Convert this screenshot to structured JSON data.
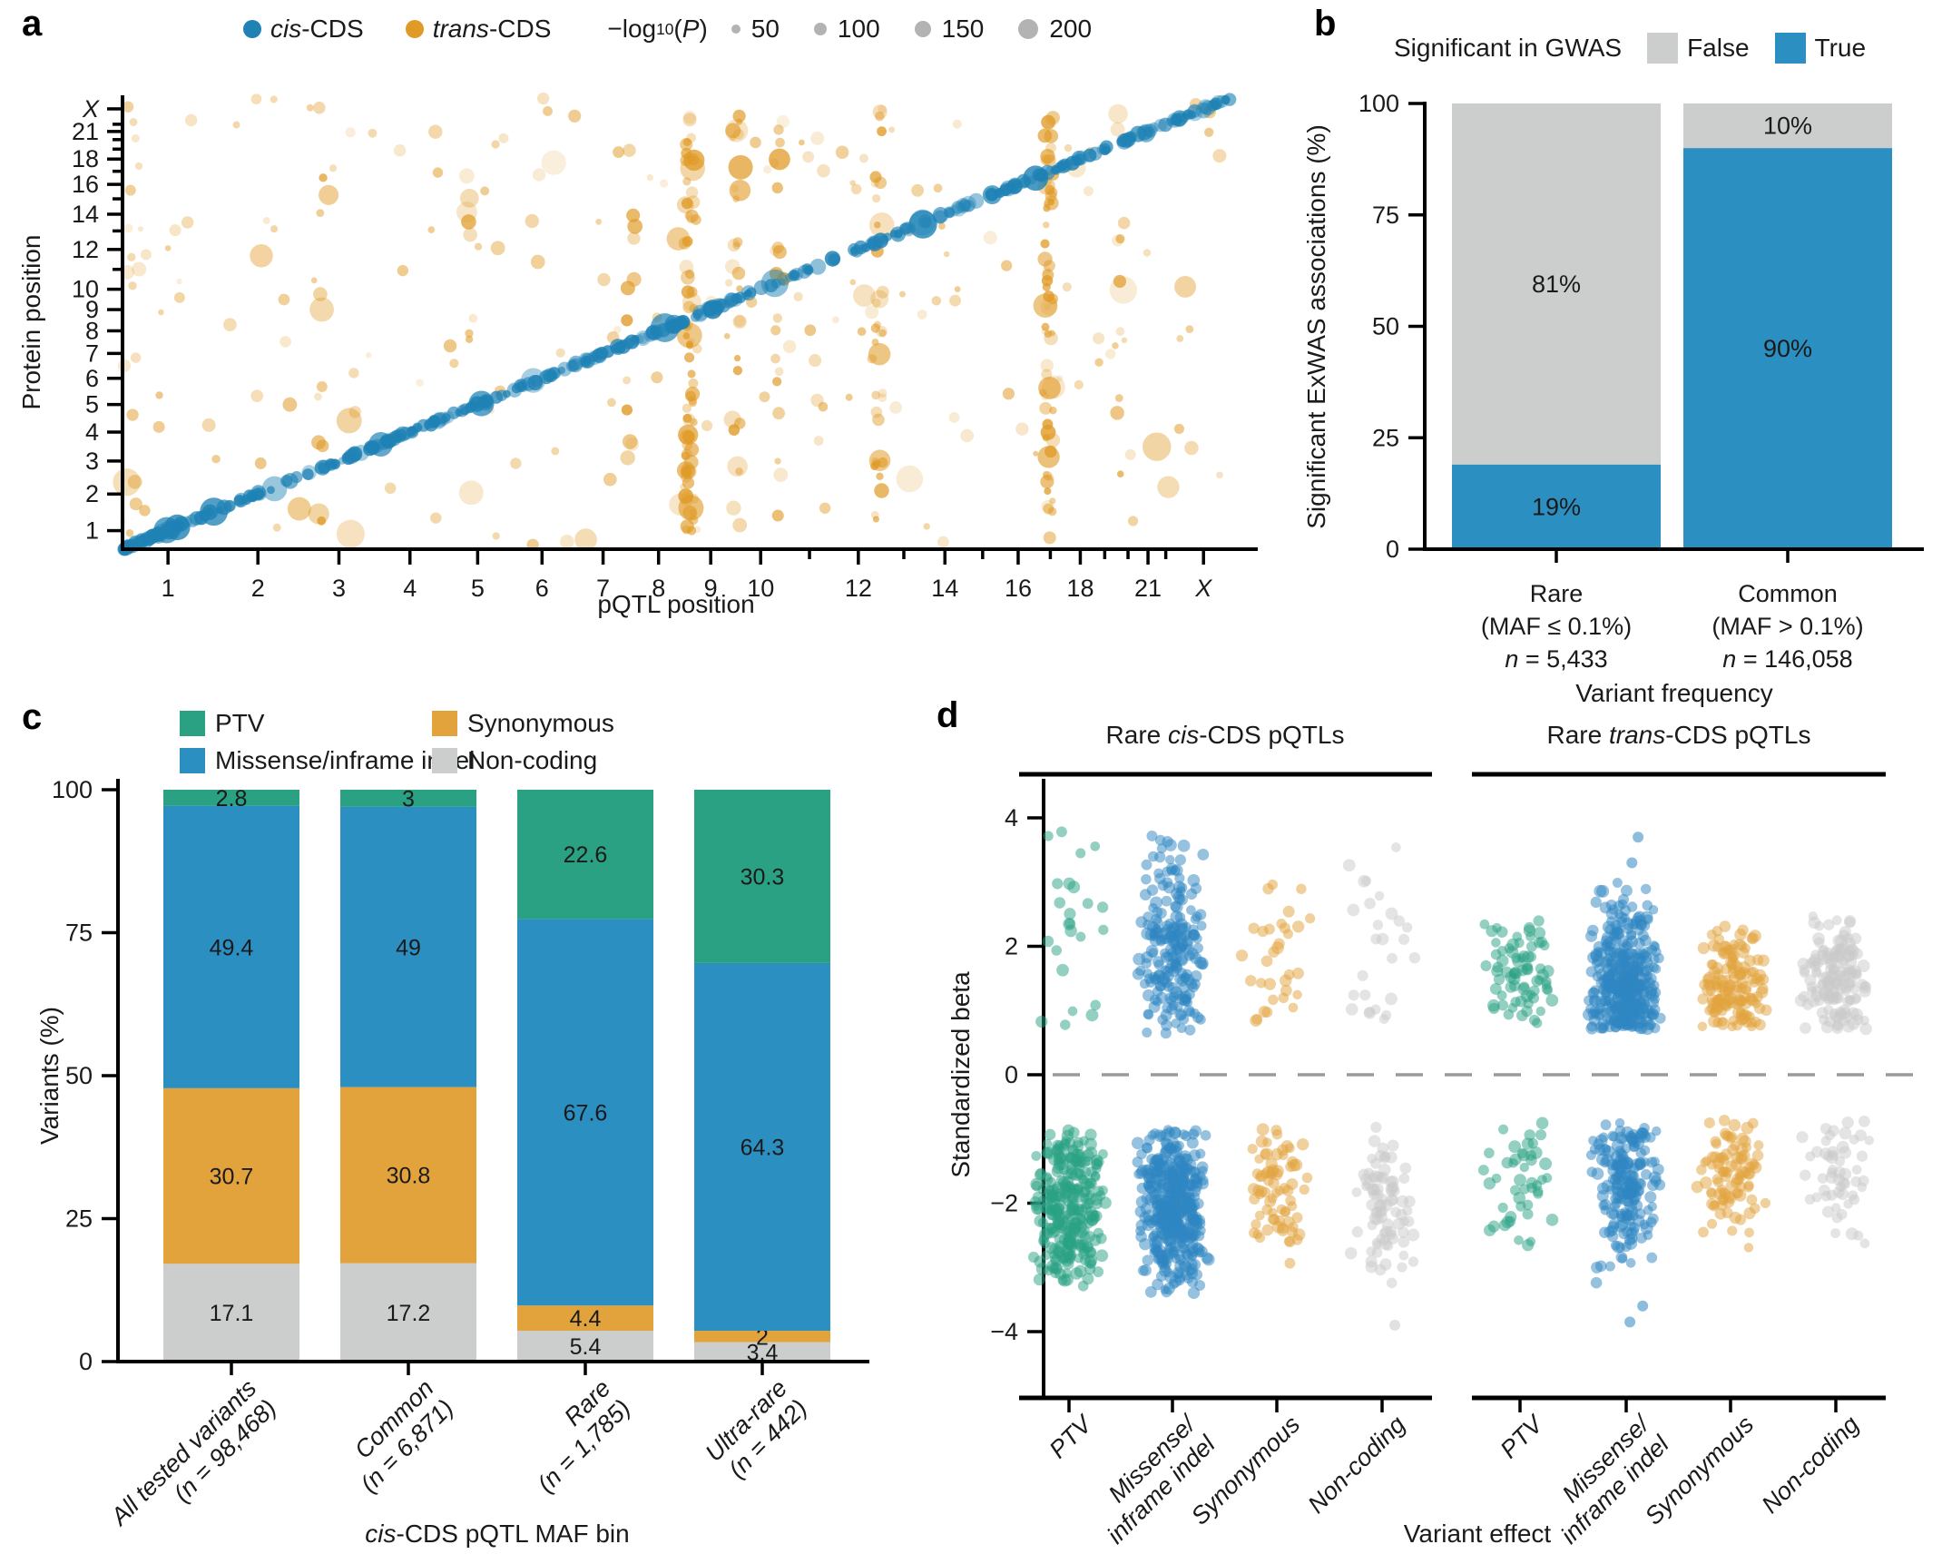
{
  "panels": {
    "a": {
      "letter": "a",
      "legend": {
        "cis_i": "cis",
        "cis_rest": "-CDS",
        "trans_i": "trans",
        "trans_rest": "-CDS",
        "size_prefix": "−log",
        "size_sub": "10",
        "size_open": "(",
        "size_p": "P",
        "size_close": ")",
        "sizes": [
          "50",
          "100",
          "150",
          "200"
        ]
      },
      "xlabel": "pQTL position",
      "ylabel": "Protein position"
    },
    "b": {
      "letter": "b",
      "legend_title": "Significant in GWAS",
      "false_label": "False",
      "true_label": "True",
      "ylabel": "Significant ExWAS associations (%)",
      "xlabel": "Variant frequency",
      "categories": [
        {
          "name": "Rare",
          "maf": "(MAF ≤ 0.1%)",
          "n_i": "n",
          "n_rest": " = 5,433"
        },
        {
          "name": "Common",
          "maf": "(MAF > 0.1%)",
          "n_i": "n",
          "n_rest": " = 146,058"
        }
      ]
    },
    "c": {
      "letter": "c",
      "legend": {
        "ptv": "PTV",
        "missense": "Missense/inframe indel",
        "synonymous": "Synonymous",
        "noncoding": "Non-coding"
      },
      "ylabel": "Variants (%)",
      "xlabel_i": "cis",
      "xlabel_rest": "-CDS pQTL MAF bin",
      "categories": [
        {
          "line1": "All tested variants",
          "n_pre": "(",
          "n_i": "n",
          "n_rest": " = 98,468)"
        },
        {
          "line1": "Common",
          "n_pre": "(",
          "n_i": "n",
          "n_rest": " = 6,871)"
        },
        {
          "line1": "Rare",
          "n_pre": "(",
          "n_i": "n",
          "n_rest": " = 1,785)"
        },
        {
          "line1": "Ultra-rare",
          "n_pre": "(",
          "n_i": "n",
          "n_rest": " = 442)"
        }
      ]
    },
    "d": {
      "letter": "d",
      "header1": {
        "pre": "Rare ",
        "i": "cis",
        "post": "-CDS pQTLs"
      },
      "header2": {
        "pre": "Rare ",
        "i": "trans",
        "post": "-CDS pQTLs"
      },
      "ylabel": "Standardized beta",
      "xlabel": "Variant effect",
      "categories": [
        {
          "l1": "PTV",
          "l2": ""
        },
        {
          "l1": "Missense/",
          "l2": "inframe indel"
        },
        {
          "l1": "Synonymous",
          "l2": ""
        },
        {
          "l1": "Non-coding",
          "l2": ""
        }
      ]
    }
  },
  "chart_data": [
    {
      "id": "a",
      "type": "scatter",
      "xlabel": "pQTL position",
      "ylabel": "Protein position",
      "axes_scale": "cumulative genome position over chromosomes 1-22 and X on both axes",
      "chrom_fractions": {
        "1": 0.041,
        "2": 0.122,
        "3": 0.195,
        "4": 0.259,
        "5": 0.32,
        "6": 0.378,
        "7": 0.433,
        "8": 0.483,
        "9": 0.53,
        "10": 0.575,
        "11": 0.619,
        "12": 0.663,
        "13": 0.704,
        "14": 0.741,
        "15": 0.775,
        "16": 0.807,
        "17": 0.836,
        "18": 0.863,
        "19": 0.885,
        "20": 0.906,
        "21": 0.924,
        "22": 0.94,
        "X": 0.974
      },
      "labeled_ticks": [
        "1",
        "2",
        "3",
        "4",
        "5",
        "6",
        "7",
        "8",
        "9",
        "10",
        "12",
        "14",
        "16",
        "18",
        "21",
        "X"
      ],
      "size_legend": {
        "title": "−log10(P)",
        "values": [
          50,
          100,
          150,
          200
        ]
      },
      "series": [
        {
          "name": "cis-CDS",
          "color": "#1f82b5",
          "pattern": "diagonal y = x band",
          "n": 430,
          "start_cluster_n": 55
        },
        {
          "name": "trans-CDS",
          "color": "#e09a26",
          "pattern": "background scatter plus vertical bands",
          "n": 190,
          "bands": [
            [
              0.179,
              10
            ],
            [
              0.31,
              7
            ],
            [
              0.458,
              12
            ],
            [
              0.511,
              72
            ],
            [
              0.553,
              26
            ],
            [
              0.592,
              14
            ],
            [
              0.681,
              32
            ],
            [
              0.835,
              60
            ],
            [
              0.9,
              10
            ]
          ],
          "left_edge_n": 14
        }
      ]
    },
    {
      "id": "b",
      "type": "bar",
      "stacked": true,
      "legend_title": "Significant in GWAS",
      "ylabel": "Significant ExWAS associations (%)",
      "xlabel": "Variant frequency",
      "ylim": [
        0,
        100
      ],
      "yticks": [
        0,
        25,
        50,
        75,
        100
      ],
      "categories": [
        "Rare (MAF ≤ 0.1%) n = 5,433",
        "Common (MAF > 0.1%) n = 146,058"
      ],
      "series": [
        {
          "name": "True",
          "color": "#2b8fc1",
          "values": [
            19,
            90
          ],
          "labels": [
            "19%",
            "90%"
          ]
        },
        {
          "name": "False",
          "color": "#cbcecd",
          "values": [
            81,
            10
          ],
          "labels": [
            "81%",
            "10%"
          ]
        }
      ]
    },
    {
      "id": "c",
      "type": "bar",
      "stacked": true,
      "ylabel": "Variants (%)",
      "xlabel": "cis-CDS pQTL MAF bin",
      "ylim": [
        0,
        100
      ],
      "yticks": [
        0,
        25,
        50,
        75,
        100
      ],
      "categories": [
        "All tested variants (n = 98,468)",
        "Common (n = 6,871)",
        "Rare (n = 1,785)",
        "Ultra-rare (n = 442)"
      ],
      "series": [
        {
          "name": "Non-coding",
          "color": "#cbcecd",
          "values": [
            17.1,
            17.2,
            5.4,
            3.4
          ]
        },
        {
          "name": "Synonymous",
          "color": "#e2a33d",
          "values": [
            30.7,
            30.8,
            4.4,
            2
          ]
        },
        {
          "name": "Missense/inframe indel",
          "color": "#2b8fc1",
          "values": [
            49.4,
            49,
            67.6,
            64.3
          ]
        },
        {
          "name": "PTV",
          "color": "#2aa183",
          "values": [
            2.8,
            3,
            22.6,
            30.3
          ]
        }
      ]
    },
    {
      "id": "d",
      "type": "scatter",
      "subtype": "strip-beeswarm",
      "ylabel": "Standardized beta",
      "xlabel": "Variant effect",
      "ylim": [
        -4.8,
        4.8
      ],
      "yticks": [
        4,
        2,
        0,
        -2,
        -4
      ],
      "zero_line": "dashed",
      "colors": {
        "PTV": "#2aa183",
        "Missense/inframe indel": "#2e86c1",
        "Synonymous": "#e2a33d",
        "Non-coding": "#c9c9c9"
      },
      "groups": [
        {
          "name": "Rare cis-CDS pQTLs",
          "clusters": [
            {
              "category": "PTV",
              "n_pos": 24,
              "pos_center": 2.2,
              "pos_range": [
                0.7,
                3.8
              ],
              "n_neg": 300,
              "neg_center": -2.1,
              "neg_range": [
                -3.3,
                -0.85
              ]
            },
            {
              "category": "Missense/inframe indel",
              "n_pos": 210,
              "pos_center": 1.9,
              "pos_range": [
                0.6,
                3.75
              ],
              "n_neg": 420,
              "neg_center": -2.05,
              "neg_range": [
                -3.4,
                -0.85
              ]
            },
            {
              "category": "Synonymous",
              "n_pos": 32,
              "pos_center": 1.5,
              "pos_range": [
                0.7,
                3.05
              ],
              "n_neg": 75,
              "neg_center": -1.8,
              "neg_range": [
                -2.95,
                -0.7
              ]
            },
            {
              "category": "Non-coding",
              "n_pos": 26,
              "pos_center": 1.8,
              "pos_range": [
                0.75,
                3.6
              ],
              "n_neg": 85,
              "neg_center": -1.9,
              "neg_range": [
                -3.3,
                -0.75
              ],
              "neg_outliers": [
                -3.9
              ]
            }
          ]
        },
        {
          "name": "Rare trans-CDS pQTLs",
          "clusters": [
            {
              "category": "PTV",
              "n_pos": 75,
              "pos_center": 1.55,
              "pos_range": [
                0.75,
                2.6
              ],
              "n_neg": 46,
              "neg_center": -1.6,
              "neg_range": [
                -3.0,
                -0.75
              ]
            },
            {
              "category": "Missense/inframe indel",
              "n_pos": 380,
              "pos_center": 1.35,
              "pos_range": [
                0.7,
                3.0
              ],
              "pos_outliers": [
                3.3,
                3.7
              ],
              "n_neg": 190,
              "neg_center": -1.65,
              "neg_range": [
                -3.3,
                -0.7
              ],
              "neg_outliers": [
                -3.6,
                -3.85
              ]
            },
            {
              "category": "Synonymous",
              "n_pos": 150,
              "pos_center": 1.3,
              "pos_range": [
                0.7,
                2.4
              ],
              "n_neg": 95,
              "neg_center": -1.5,
              "neg_range": [
                -2.7,
                -0.7
              ]
            },
            {
              "category": "Non-coding",
              "n_pos": 150,
              "pos_center": 1.35,
              "pos_range": [
                0.7,
                2.5
              ],
              "n_neg": 55,
              "neg_center": -1.5,
              "neg_range": [
                -2.8,
                -0.7
              ]
            }
          ]
        }
      ]
    }
  ]
}
